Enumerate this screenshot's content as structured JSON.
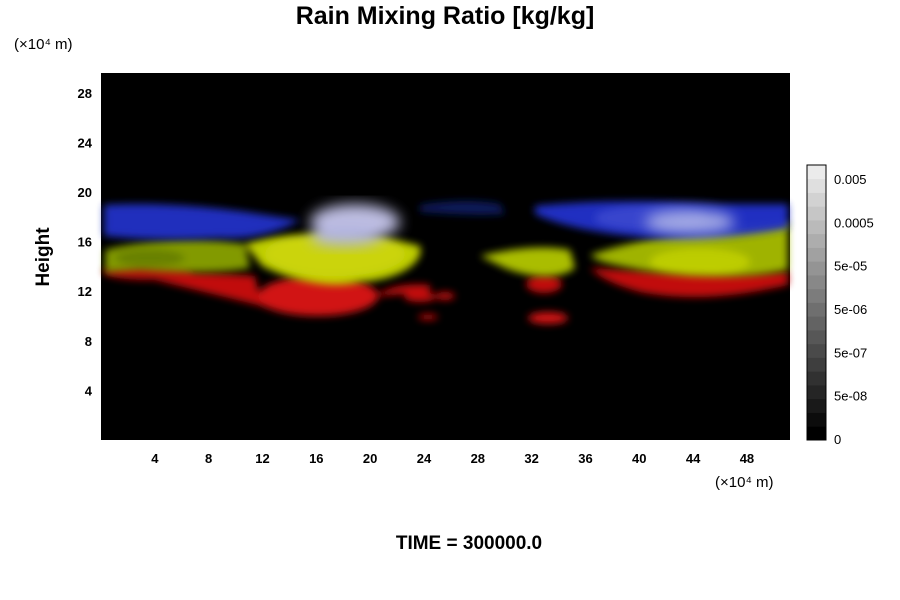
{
  "chart_data": {
    "type": "heatmap",
    "title": "Rain Mixing Ratio [kg/kg]",
    "ylabel": "Height",
    "x_unit": "(×10⁴ m)",
    "y_unit": "(×10⁴ m)",
    "x_ticks": [
      4,
      8,
      12,
      16,
      20,
      24,
      28,
      32,
      36,
      40,
      44,
      48
    ],
    "y_ticks": [
      4,
      8,
      12,
      16,
      20,
      24,
      28
    ],
    "xlim": [
      0,
      51.2
    ],
    "ylim": [
      0,
      29.6
    ],
    "grid": false,
    "background": "#000000",
    "colorbar": {
      "labels": [
        "0.005",
        "0.0005",
        "5e-05",
        "5e-06",
        "5e-07",
        "5e-08",
        "0"
      ],
      "levels": 20
    },
    "layers": [
      {
        "color": "#dd1111",
        "height_range": [
          10,
          14
        ]
      },
      {
        "color": "#c8d800",
        "height_range": [
          13,
          17
        ]
      },
      {
        "color": "#2233cc",
        "height_range": [
          16,
          19.5
        ]
      },
      {
        "color": "#c8c8ee",
        "height_range": [
          16.5,
          19.5
        ]
      }
    ],
    "footer": "TIME = 300000.0"
  }
}
